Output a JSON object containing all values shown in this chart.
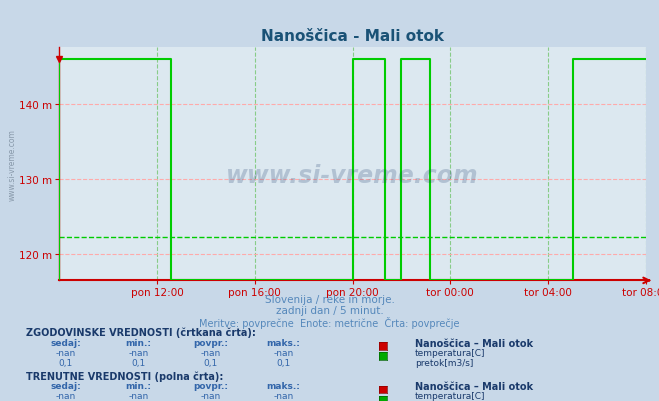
{
  "title": "Nanoščica - Mali otok",
  "title_color": "#1a5276",
  "bg_color": "#c8d8e8",
  "plot_bg_color": "#dce8f0",
  "grid_color_h": "#ffaaaa",
  "grid_color_v": "#88cc88",
  "xlabel_ticks": [
    "pon 12:00",
    "pon 16:00",
    "pon 20:00",
    "tor 00:00",
    "tor 04:00",
    "tor 08:00"
  ],
  "yticks": [
    120,
    130,
    140
  ],
  "ytick_labels": [
    "120 m",
    "130 m",
    "140 m"
  ],
  "ymin": 116.5,
  "ymax": 147.5,
  "xmin": 0,
  "xmax": 288,
  "watermark_text": "www.si-vreme.com",
  "subtitle1": "Slovenija / reke in morje.",
  "subtitle2": "zadnji dan / 5 minut.",
  "subtitle3": "Meritve: povprečne  Enote: metrične  Črta: povprečje",
  "subtitle_color": "#5588bb",
  "left_label": "www.si-vreme.com",
  "left_label_color": "#8899aa",
  "section1_title": "ZGODOVINSKE VREDNOSTI (črtkana črta):",
  "section2_title": "TRENUTNE VREDNOSTI (polna črta):",
  "col_headers": [
    "sedaj:",
    "min.:",
    "povpr.:",
    "maks.:"
  ],
  "row1_hist": [
    "-nan",
    "-nan",
    "-nan",
    "-nan"
  ],
  "row2_hist": [
    "0,1",
    "0,1",
    "0,1",
    "0,1"
  ],
  "row1_curr": [
    "-nan",
    "-nan",
    "-nan",
    "-nan"
  ],
  "row2_curr": [
    "0,1",
    "0,1",
    "0,1",
    "0,1"
  ],
  "legend_station": "Nanoščica – Mali otok",
  "legend_temp_label": "temperatura[C]",
  "legend_pretok_label": "pretok[m3/s]",
  "temp_color": "#cc0000",
  "pretok_color": "#00aa00",
  "line_color_green": "#00cc00",
  "line_color_red": "#cc0000",
  "axis_color": "#cc0000",
  "tick_color": "#cc0000",
  "dashed_green_line_y": 122.3,
  "gx": [
    0,
    0,
    55,
    55,
    144,
    144,
    160,
    160,
    168,
    168,
    182,
    182,
    252,
    252,
    288
  ],
  "gy": [
    116.5,
    146,
    146,
    116.5,
    116.5,
    146,
    146,
    116.5,
    116.5,
    146,
    146,
    116.5,
    116.5,
    146,
    146
  ],
  "x_tick_positions": [
    48,
    96,
    144,
    192,
    240,
    288
  ]
}
